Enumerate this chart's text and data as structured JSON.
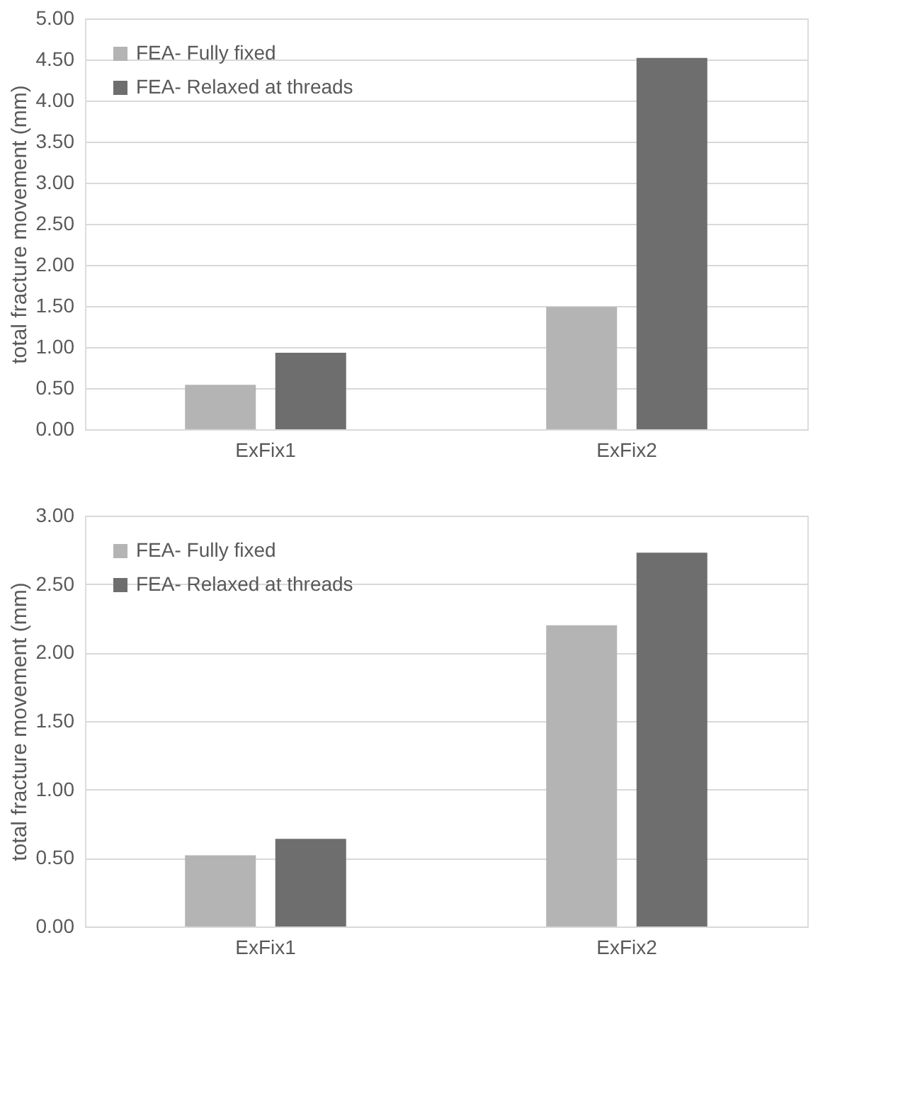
{
  "chart_data": [
    {
      "type": "bar",
      "categories": [
        "ExFix1",
        "ExFix2"
      ],
      "ylabel": "total fracture movement (mm)",
      "ylim": [
        0,
        5
      ],
      "yticks": [
        {
          "value": 0,
          "label": "0.00"
        },
        {
          "value": 0.5,
          "label": "0.50"
        },
        {
          "value": 1,
          "label": "1.00"
        },
        {
          "value": 1.5,
          "label": "1.50"
        },
        {
          "value": 2,
          "label": "2.00"
        },
        {
          "value": 2.5,
          "label": "2.50"
        },
        {
          "value": 3,
          "label": "3.00"
        },
        {
          "value": 3.5,
          "label": "3.50"
        },
        {
          "value": 4,
          "label": "4.00"
        },
        {
          "value": 4.5,
          "label": "4.50"
        },
        {
          "value": 5,
          "label": "5.00"
        }
      ],
      "grid": "y",
      "legend": "top left",
      "series": [
        {
          "name": "FEA- Fully fixed",
          "color": "#b4b4b4",
          "values": [
            0.54,
            1.49
          ]
        },
        {
          "name": "FEA- Relaxed at threads",
          "color": "#6e6e6e",
          "values": [
            0.93,
            4.52
          ]
        }
      ]
    },
    {
      "type": "bar",
      "categories": [
        "ExFix1",
        "ExFix2"
      ],
      "ylabel": "total fracture movement (mm)",
      "ylim": [
        0,
        3
      ],
      "yticks": [
        {
          "value": 0,
          "label": "0.00"
        },
        {
          "value": 0.5,
          "label": "0.50"
        },
        {
          "value": 1,
          "label": "1.00"
        },
        {
          "value": 1.5,
          "label": "1.50"
        },
        {
          "value": 2,
          "label": "2.00"
        },
        {
          "value": 2.5,
          "label": "2.50"
        },
        {
          "value": 3,
          "label": "3.00"
        }
      ],
      "grid": "y",
      "legend": "top left",
      "series": [
        {
          "name": "FEA- Fully fixed",
          "color": "#b4b4b4",
          "values": [
            0.52,
            2.2
          ]
        },
        {
          "name": "FEA- Relaxed at threads",
          "color": "#6e6e6e",
          "values": [
            0.64,
            2.73
          ]
        }
      ]
    }
  ]
}
